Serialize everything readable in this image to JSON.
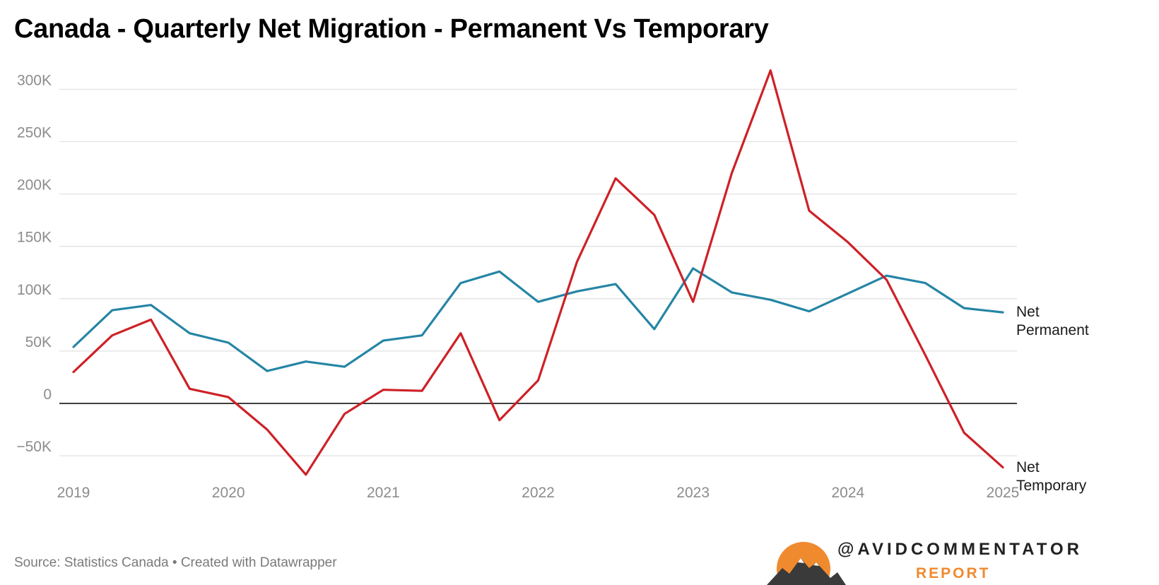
{
  "title": "Canada - Quarterly Net Migration - Permanent Vs Temporary",
  "footer": "Source: Statistics Canada • Created with Datawrapper",
  "brand": {
    "handle": "@AVIDCOMMENTATOR",
    "sub": "REPORT"
  },
  "colors": {
    "permanent": "#2585a5",
    "temporary": "#cd2127",
    "zero_line": "#000000",
    "grid": "#e2e2e2",
    "brand_orange": "#f08a2e"
  },
  "chart_data": {
    "type": "line",
    "title": "Canada - Quarterly Net Migration - Permanent Vs Temporary",
    "xlabel": "",
    "ylabel": "",
    "x": [
      2019,
      2019.25,
      2019.5,
      2019.75,
      2020,
      2020.25,
      2020.5,
      2020.75,
      2021,
      2021.25,
      2021.5,
      2021.75,
      2022,
      2022.25,
      2022.5,
      2022.75,
      2023,
      2023.25,
      2023.5,
      2023.75,
      2024,
      2024.25,
      2024.5,
      2024.75,
      2025
    ],
    "xlim": [
      2019,
      2025
    ],
    "xticks": [
      2019,
      2020,
      2021,
      2022,
      2023,
      2024,
      2025
    ],
    "xtick_labels": [
      "2019",
      "2020",
      "2021",
      "2022",
      "2023",
      "2024",
      "2025"
    ],
    "ylim": [
      -70000,
      320000
    ],
    "yticks": [
      -50000,
      0,
      50000,
      100000,
      150000,
      200000,
      250000,
      300000
    ],
    "ytick_labels": [
      "−50K",
      "0",
      "50K",
      "100K",
      "150K",
      "200K",
      "250K",
      "300K"
    ],
    "grid": true,
    "series": [
      {
        "name": "Net Permanent",
        "label_lines": [
          "Net",
          "Permanent"
        ],
        "values": [
          54000,
          89000,
          94000,
          67000,
          58000,
          31000,
          40000,
          35000,
          60000,
          65000,
          115000,
          126000,
          97000,
          107000,
          114000,
          71000,
          129000,
          106000,
          99000,
          88000,
          105000,
          122000,
          115000,
          91000,
          87000
        ]
      },
      {
        "name": "Net Temporary",
        "label_lines": [
          "Net",
          "Temporary"
        ],
        "values": [
          30000,
          65000,
          80000,
          14000,
          6000,
          -25000,
          -68000,
          -10000,
          13000,
          12000,
          67000,
          -16000,
          22000,
          135000,
          215000,
          180000,
          97000,
          220000,
          318000,
          184000,
          154000,
          118000,
          46000,
          -28000,
          -61000
        ]
      }
    ]
  }
}
